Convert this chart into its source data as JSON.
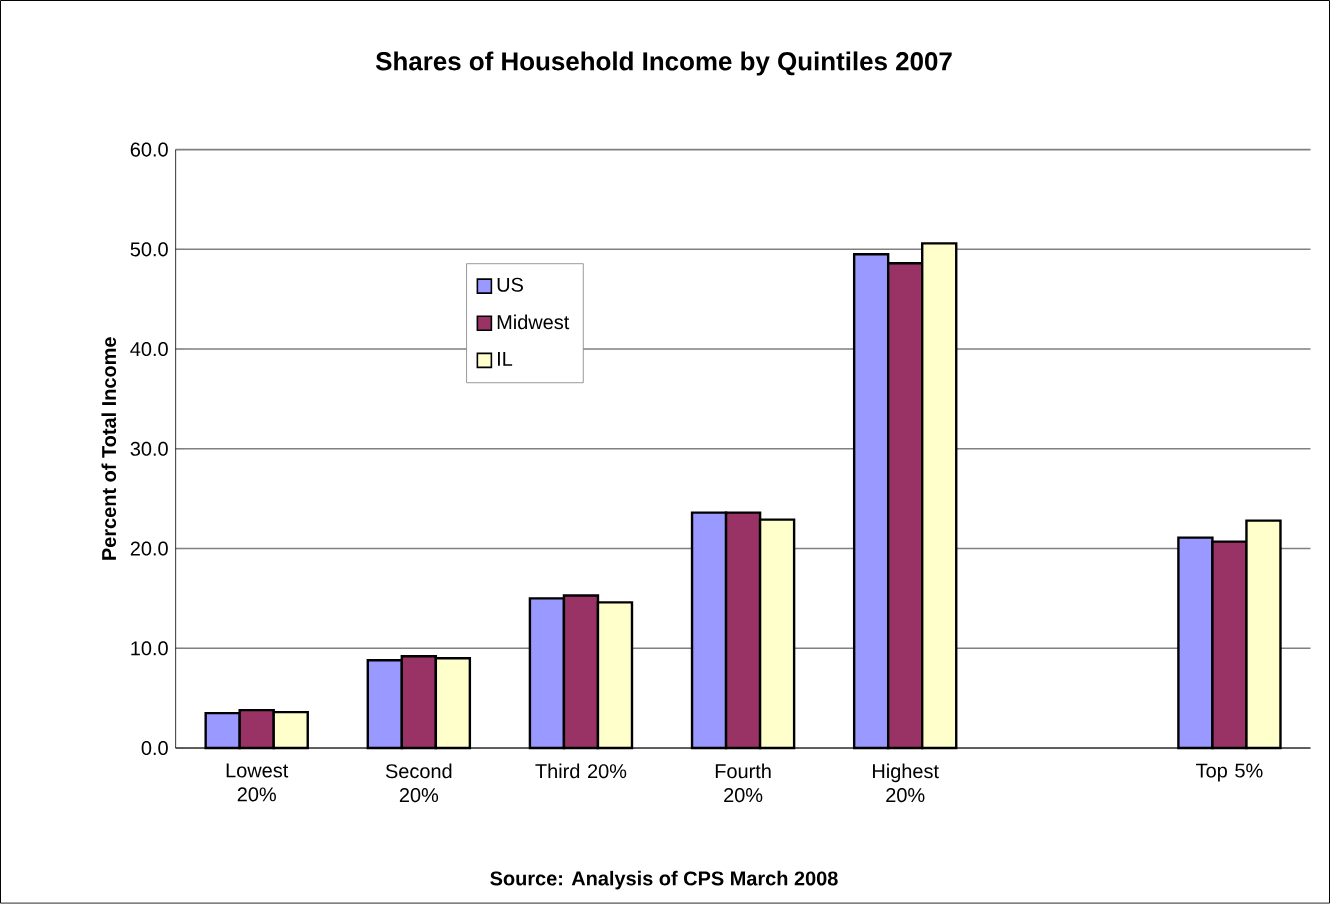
{
  "chart_data": {
    "type": "bar",
    "title": "Shares of Household Income by Quintiles 2007",
    "ylabel": "Percent of Total Income",
    "annotations": [
      "Source:  Analysis of CPS March 2008"
    ],
    "categories": [
      "Lowest 20%",
      "Second 20%",
      "Third 20%",
      "Fourth 20%",
      "Highest 20%",
      null,
      "Top 5%"
    ],
    "series": [
      {
        "name": "US",
        "color": "#9999ff",
        "values": [
          3.5,
          8.8,
          15.0,
          23.6,
          49.5,
          null,
          21.1
        ]
      },
      {
        "name": "Midwest",
        "color": "#993366",
        "values": [
          3.8,
          9.2,
          15.3,
          23.6,
          48.6,
          null,
          20.7
        ]
      },
      {
        "name": "IL",
        "color": "#ffffcc",
        "values": [
          3.6,
          9.0,
          14.6,
          22.9,
          50.6,
          null,
          22.8
        ]
      }
    ],
    "ylim": [
      0,
      60
    ],
    "yticks": [
      {
        "value": 0,
        "label": "0.0"
      },
      {
        "value": 10,
        "label": "10.0"
      },
      {
        "value": 20,
        "label": "20.0"
      },
      {
        "value": 30,
        "label": "30.0"
      },
      {
        "value": 40,
        "label": "40.0"
      },
      {
        "value": 50,
        "label": "50.0"
      },
      {
        "value": 60,
        "label": "60.0"
      }
    ],
    "grid": "y",
    "legend": "top left"
  }
}
